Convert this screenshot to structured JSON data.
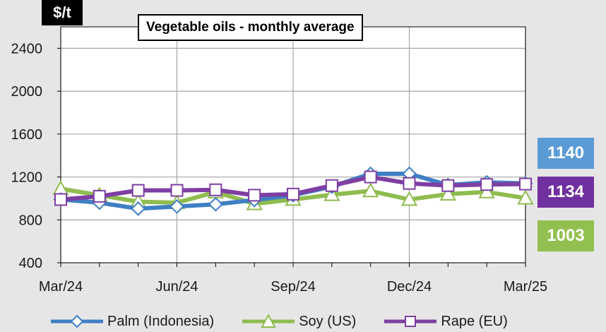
{
  "chart_data": {
    "type": "line",
    "title": "Vegetable oils - monthly average",
    "ylabel": "$/t",
    "xlabel": "",
    "ylim": [
      400,
      2600
    ],
    "yticks": [
      400,
      800,
      1200,
      1600,
      2000,
      2400
    ],
    "categories": [
      "Mar/24",
      "Apr/24",
      "May/24",
      "Jun/24",
      "Jul/24",
      "Aug/24",
      "Sep/24",
      "Oct/24",
      "Nov/24",
      "Dec/24",
      "Jan/25",
      "Feb/25",
      "Mar/25"
    ],
    "x_tick_labels": [
      "Mar/24",
      "Jun/24",
      "Sep/24",
      "Dec/24",
      "Mar/25"
    ],
    "grid": true,
    "legend_position": "bottom",
    "series": [
      {
        "name": "Palm (Indonesia)",
        "color": "#3f7fc4",
        "marker": "diamond",
        "values": [
          990,
          960,
          905,
          925,
          945,
          985,
          1030,
          1110,
          1230,
          1230,
          1125,
          1150,
          1140
        ]
      },
      {
        "name": "Soy (US)",
        "color": "#8fbc4f",
        "marker": "triangle",
        "values": [
          1090,
          1030,
          970,
          960,
          1060,
          950,
          990,
          1035,
          1070,
          990,
          1040,
          1060,
          1003
        ]
      },
      {
        "name": "Rape (EU)",
        "color": "#7e3fa3",
        "marker": "square",
        "values": [
          990,
          1020,
          1075,
          1075,
          1080,
          1030,
          1040,
          1120,
          1200,
          1140,
          1120,
          1130,
          1134
        ]
      }
    ],
    "latest_values": [
      {
        "label": "1140",
        "color": "#5b9bd5"
      },
      {
        "label": "1134",
        "color": "#7030a0"
      },
      {
        "label": "1003",
        "color": "#92c050"
      }
    ]
  }
}
